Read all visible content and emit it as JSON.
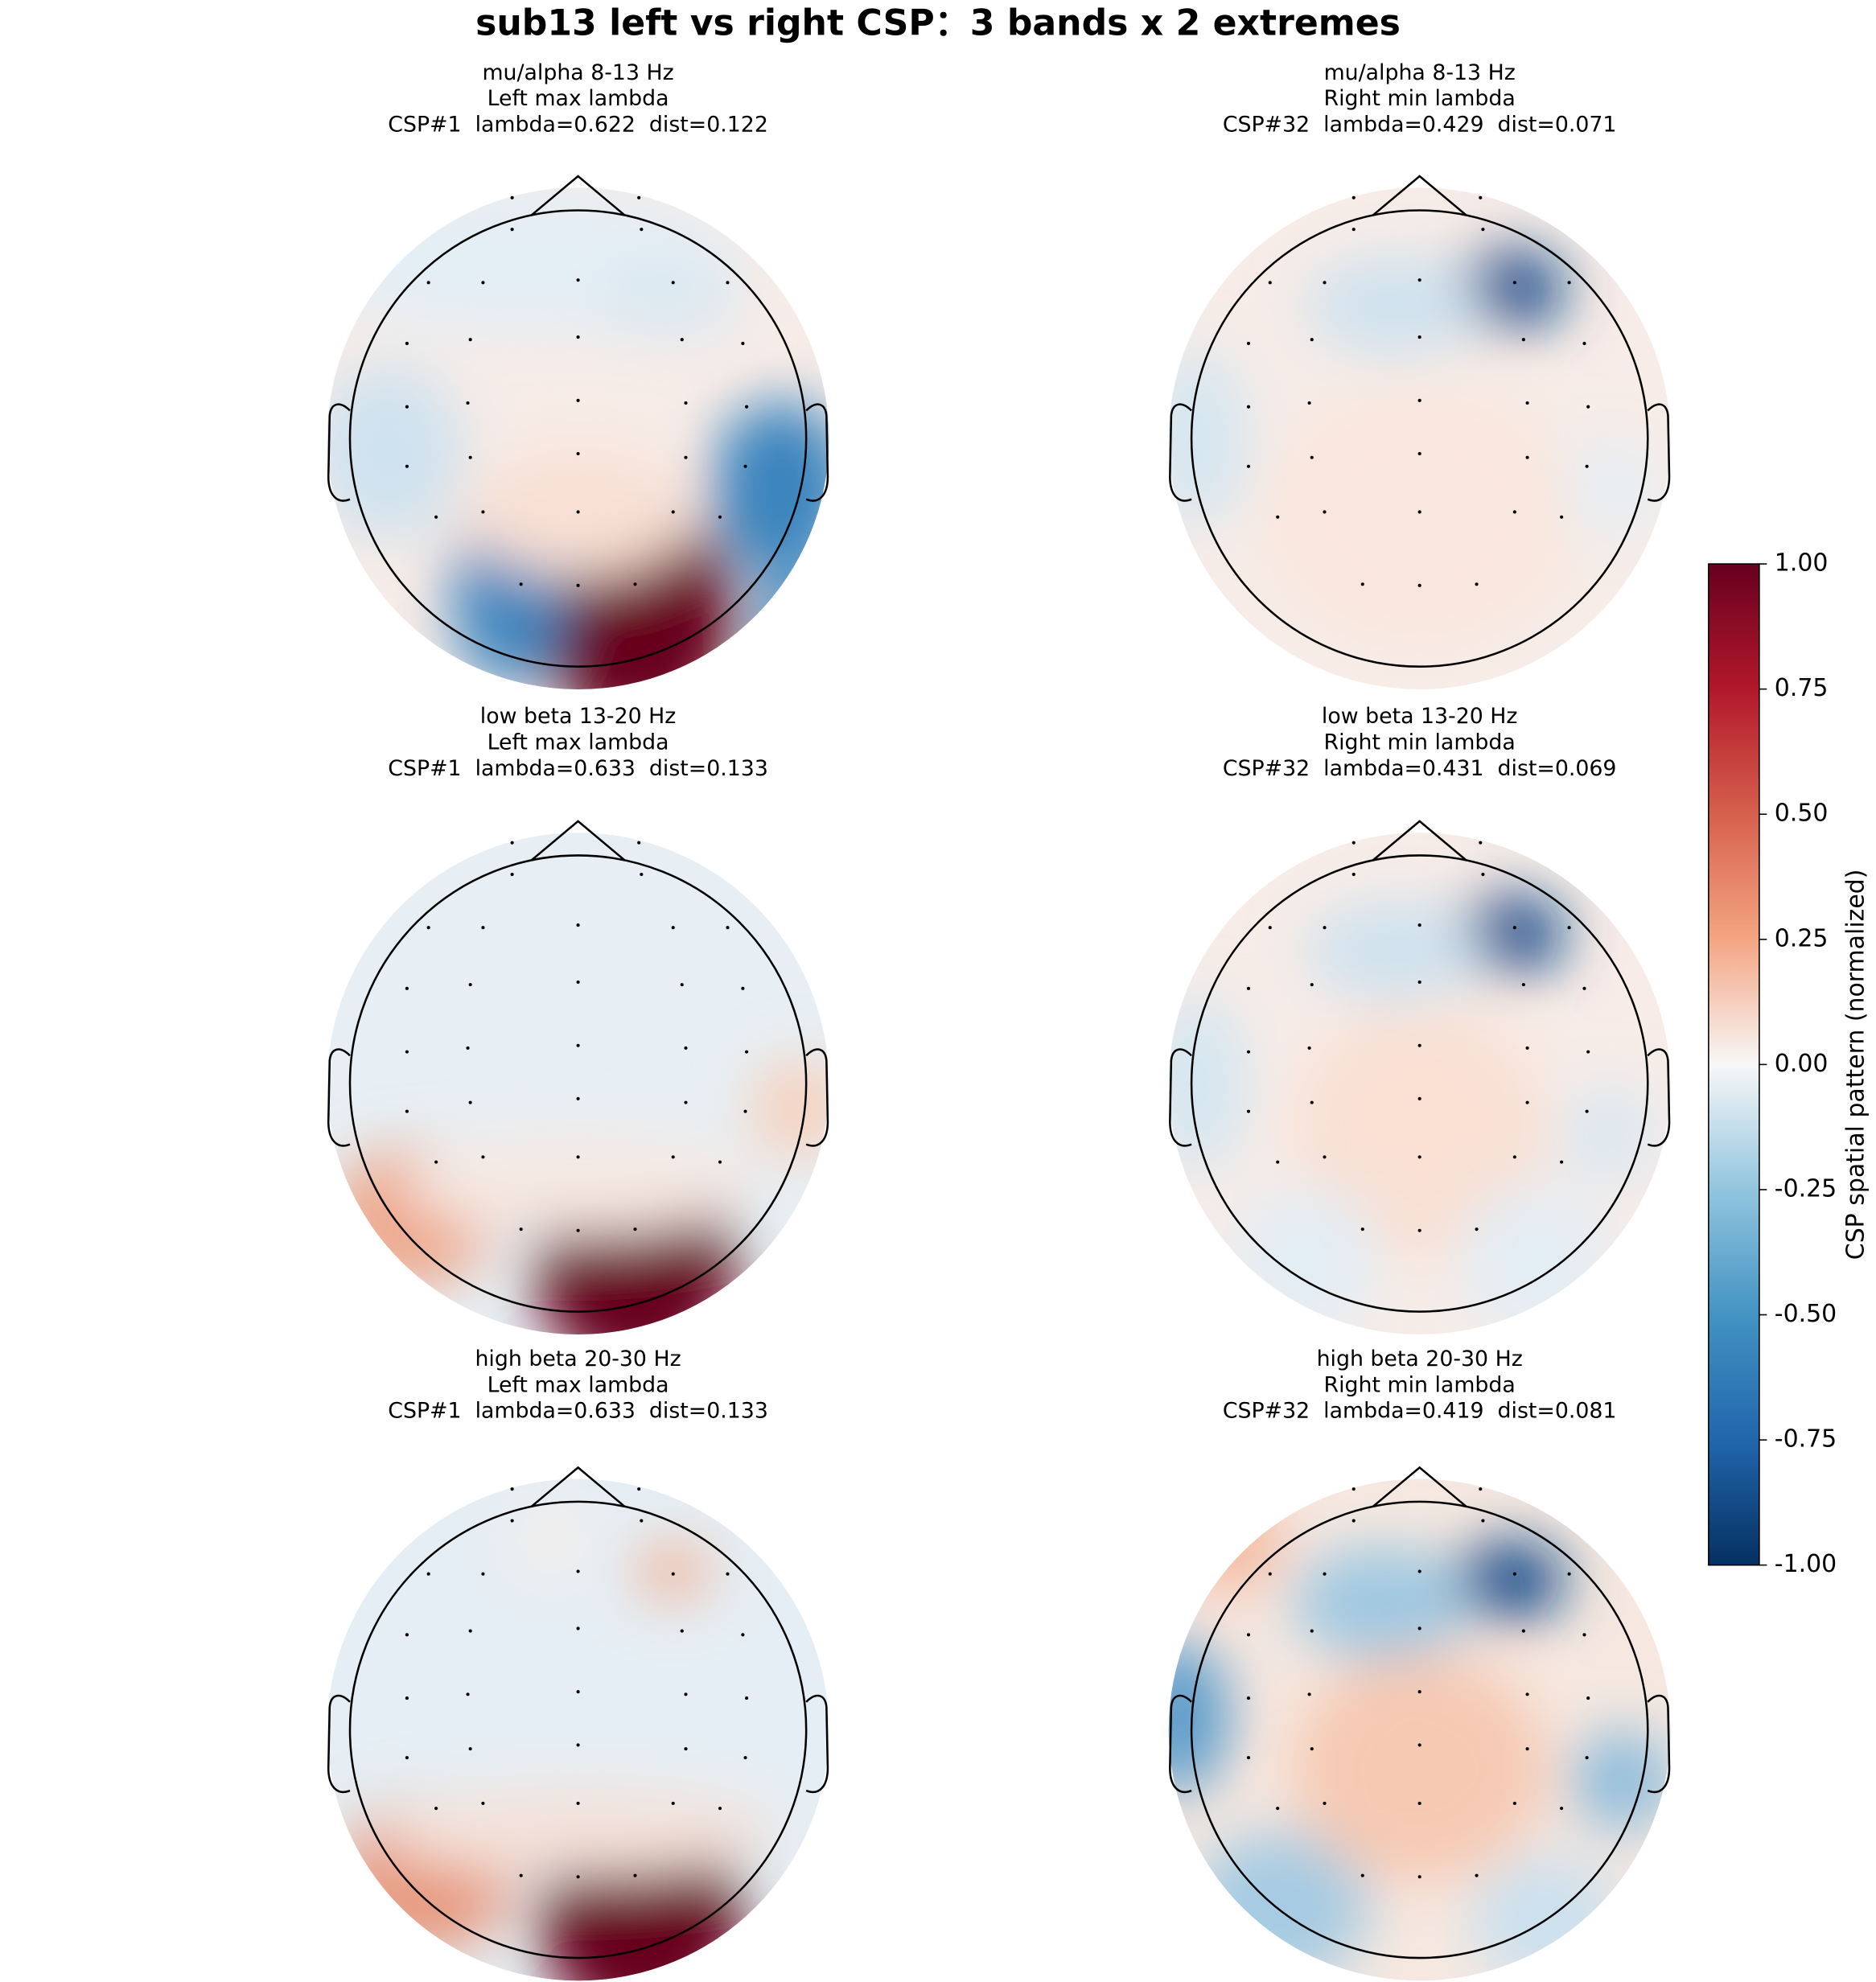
{
  "title": "sub13 left vs right CSP：3 bands x 2 extremes",
  "panels": [
    {
      "band": "mu/alpha 8-13 Hz",
      "side": "Left max lambda",
      "stats": "CSP#1  lambda=0.622  dist=0.122"
    },
    {
      "band": "mu/alpha 8-13 Hz",
      "side": "Right min lambda",
      "stats": "CSP#32  lambda=0.429  dist=0.071"
    },
    {
      "band": "low beta 13-20 Hz",
      "side": "Left max lambda",
      "stats": "CSP#1  lambda=0.633  dist=0.133"
    },
    {
      "band": "low beta 13-20 Hz",
      "side": "Right min lambda",
      "stats": "CSP#32  lambda=0.431  dist=0.069"
    },
    {
      "band": "high beta 20-30 Hz",
      "side": "Left max lambda",
      "stats": "CSP#1  lambda=0.633  dist=0.133"
    },
    {
      "band": "high beta 20-30 Hz",
      "side": "Right min lambda",
      "stats": "CSP#32  lambda=0.419  dist=0.081"
    }
  ],
  "colorbar": {
    "label": "CSP spatial pattern (normalized)",
    "lim": [
      -1,
      1
    ],
    "ticks": [
      {
        "value": 1,
        "label": "1.00"
      },
      {
        "value": 0.75,
        "label": "0.75"
      },
      {
        "value": 0.5,
        "label": "0.50"
      },
      {
        "value": 0.25,
        "label": "0.25"
      },
      {
        "value": 0,
        "label": "0.00"
      },
      {
        "value": -0.25,
        "label": "-0.25"
      },
      {
        "value": -0.5,
        "label": "-0.50"
      },
      {
        "value": -0.75,
        "label": "-0.75"
      },
      {
        "value": -1,
        "label": "-1.00"
      }
    ]
  }
}
